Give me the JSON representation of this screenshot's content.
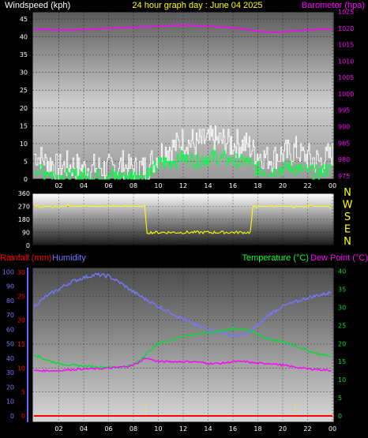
{
  "header": {
    "wind_label": "Windspeed (kph)",
    "title": "24 hour graph day : June 04 2025",
    "baro_label": "Barometer (hpa)"
  },
  "legend": {
    "rain": "Rainfall (mm)",
    "humidity": "Humidity",
    "temperature": "Temperature (°C)",
    "dewpoint": "Dew Point (°C)"
  },
  "compass": [
    "N",
    "W",
    "S",
    "E",
    "N"
  ],
  "colors": {
    "wind_gust": "#ffffff",
    "wind_avg": "#00ff44",
    "barometer": "#ff00ff",
    "direction": "#ffff00",
    "humidity": "#7777ff",
    "temperature": "#00dd33",
    "dewpoint": "#ff00ff",
    "rain": "#ff0000",
    "wind_label": "#ffffff",
    "title": "#ffff00",
    "baro_label": "#ff00ff",
    "rain_label": "#ff0000",
    "humidity_label": "#7777ff",
    "temp_label": "#00ff44",
    "dew_label": "#ff00ff"
  },
  "chart_data": [
    {
      "type": "line",
      "title": "24 hour graph day : June 04 2025",
      "x_ticks": [
        "02",
        "04",
        "06",
        "08",
        "10",
        "12",
        "14",
        "16",
        "18",
        "20",
        "22",
        "00"
      ],
      "y_ticks": [
        "0",
        "5",
        "10",
        "15",
        "20",
        "25",
        "30",
        "35",
        "40",
        "45"
      ],
      "y2_ticks": [
        "975",
        "980",
        "985",
        "990",
        "995",
        "1000",
        "1005",
        "1010",
        "1015",
        "1020",
        "1025"
      ],
      "ylabel": "Windspeed (kph)",
      "y2label": "Barometer (hpa)",
      "ylim": [
        0,
        47
      ],
      "y2lim": [
        974,
        1025
      ],
      "x": [
        0,
        1,
        2,
        3,
        4,
        5,
        6,
        7,
        8,
        9,
        10,
        11,
        12,
        13,
        14,
        15,
        16,
        17,
        18,
        19,
        20,
        21,
        22,
        23,
        24
      ],
      "series": [
        {
          "name": "Barometer",
          "axis": "y2",
          "values": [
            1019.7,
            1019.6,
            1019.5,
            1019.5,
            1019.6,
            1019.8,
            1020.0,
            1020.2,
            1020.3,
            1020.4,
            1020.6,
            1020.8,
            1020.9,
            1020.8,
            1020.6,
            1020.4,
            1020.1,
            1019.7,
            1019.1,
            1018.8,
            1018.9,
            1019.2,
            1019.5,
            1019.7,
            1019.8
          ]
        },
        {
          "name": "Wind gust",
          "axis": "y",
          "values": [
            7,
            5,
            3,
            4,
            3,
            3,
            3,
            4,
            3,
            3,
            7,
            9,
            11,
            10,
            11,
            11,
            10,
            10,
            7,
            6,
            7,
            8,
            6,
            5,
            7
          ]
        },
        {
          "name": "Wind average",
          "axis": "y",
          "values": [
            3,
            2,
            1,
            1,
            1,
            1,
            1,
            1,
            1,
            1,
            4,
            5,
            6,
            5,
            6,
            6,
            5,
            5,
            3,
            2,
            3,
            3,
            2,
            2,
            3
          ]
        }
      ]
    },
    {
      "type": "line",
      "y_ticks": [
        "0",
        "90",
        "180",
        "270",
        "360"
      ],
      "ylim": [
        0,
        360
      ],
      "x": [
        0,
        8.99,
        9.01,
        17.49,
        17.51,
        24
      ],
      "series": [
        {
          "name": "Wind direction",
          "values": [
            270,
            270,
            90,
            90,
            270,
            270
          ]
        }
      ]
    },
    {
      "type": "line",
      "x_ticks": [
        "02",
        "04",
        "06",
        "08",
        "10",
        "12",
        "14",
        "16",
        "18",
        "20",
        "22",
        "00"
      ],
      "rain_ticks": [
        "0",
        "5",
        "10",
        "15",
        "20",
        "25",
        "30"
      ],
      "humidity_ticks": [
        "0",
        "10",
        "20",
        "30",
        "40",
        "50",
        "60",
        "70",
        "80",
        "90",
        "100"
      ],
      "temp_ticks": [
        "0",
        "5",
        "10",
        "15",
        "20",
        "25",
        "30",
        "35",
        "40"
      ],
      "rain_lim": [
        0,
        31
      ],
      "humidity_lim": [
        0,
        103
      ],
      "temp_lim": [
        0,
        41
      ],
      "x": [
        0,
        1,
        2,
        3,
        4,
        5,
        6,
        7,
        8,
        9,
        10,
        11,
        12,
        13,
        14,
        15,
        16,
        17,
        18,
        19,
        20,
        21,
        22,
        23,
        24
      ],
      "series": [
        {
          "name": "Humidity",
          "axis": "humidity",
          "values": [
            76,
            83,
            88,
            93,
            96,
            98,
            97,
            92,
            86,
            81,
            76,
            72,
            67,
            63,
            60,
            58,
            56,
            56,
            63,
            71,
            76,
            79,
            82,
            84,
            86
          ]
        },
        {
          "name": "Temperature",
          "axis": "temp",
          "values": [
            17,
            15.5,
            14.5,
            14,
            13.8,
            13.6,
            13.5,
            13.5,
            14,
            17,
            20,
            21,
            22,
            22.5,
            23,
            23.5,
            24,
            24,
            22.5,
            21,
            20.5,
            19.5,
            18,
            17,
            16.5
          ]
        },
        {
          "name": "Dew Point",
          "axis": "temp",
          "values": [
            12.5,
            12.5,
            12.5,
            12.8,
            13,
            13,
            13.2,
            13.5,
            14,
            16,
            15,
            15,
            15,
            15,
            14.5,
            14.5,
            15,
            15,
            14.5,
            14.5,
            14,
            13.5,
            13,
            12.8,
            12.5
          ]
        },
        {
          "name": "Rainfall",
          "axis": "rain",
          "values": [
            0,
            0,
            0,
            0,
            0,
            0,
            0,
            0,
            0,
            0,
            0,
            0,
            0,
            0,
            0,
            0,
            0,
            0,
            0,
            0,
            0,
            0,
            0,
            0,
            0
          ]
        }
      ],
      "rain_markers": [
        9,
        21
      ]
    }
  ]
}
